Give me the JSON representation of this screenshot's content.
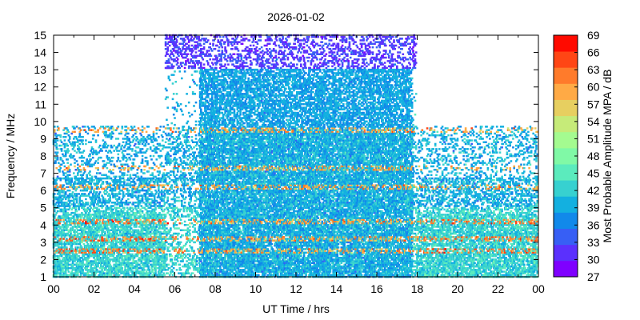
{
  "chart_data": {
    "type": "heatmap",
    "title": "2026-01-02",
    "xlabel": "UT Time / hrs",
    "ylabel": "Frequency / MHz",
    "colorbar_label": "Most Probable Amplitude MPA / dB",
    "xlim": [
      0,
      24
    ],
    "ylim": [
      1,
      15
    ],
    "x_ticks": [
      "00",
      "02",
      "04",
      "06",
      "08",
      "10",
      "12",
      "14",
      "16",
      "18",
      "20",
      "22",
      "00"
    ],
    "y_ticks": [
      "1",
      "2",
      "3",
      "4",
      "5",
      "6",
      "7",
      "8",
      "9",
      "10",
      "11",
      "12",
      "13",
      "14",
      "15"
    ],
    "colorbar": {
      "min": 27,
      "max": 69,
      "step": 3,
      "ticks": [
        "27",
        "30",
        "33",
        "36",
        "39",
        "42",
        "45",
        "48",
        "51",
        "54",
        "57",
        "60",
        "63",
        "66",
        "69"
      ],
      "colors": [
        "#7f00ff",
        "#5b30fd",
        "#375ff5",
        "#1189ea",
        "#13b0e0",
        "#37d1d0",
        "#5bebbd",
        "#80f9a6",
        "#a4fb90",
        "#c6eb79",
        "#e7cf60",
        "#ffaa45",
        "#ff7b2b",
        "#ff4615",
        "#ff0a00"
      ]
    },
    "grid": false,
    "activity": {
      "night_band_upper_mhz": 9.7,
      "day_band_upper_mhz": 15,
      "day_start_hr": 5.5,
      "day_end_hr": 18,
      "dense_day_start_hr": 7.2,
      "dense_day_end_hr": 17.8,
      "typical_db": 39,
      "strong_lines_mhz": [
        2.5,
        3.2,
        4.2,
        6.2,
        7.3,
        9.5
      ],
      "strong_lines_db": 60
    }
  }
}
